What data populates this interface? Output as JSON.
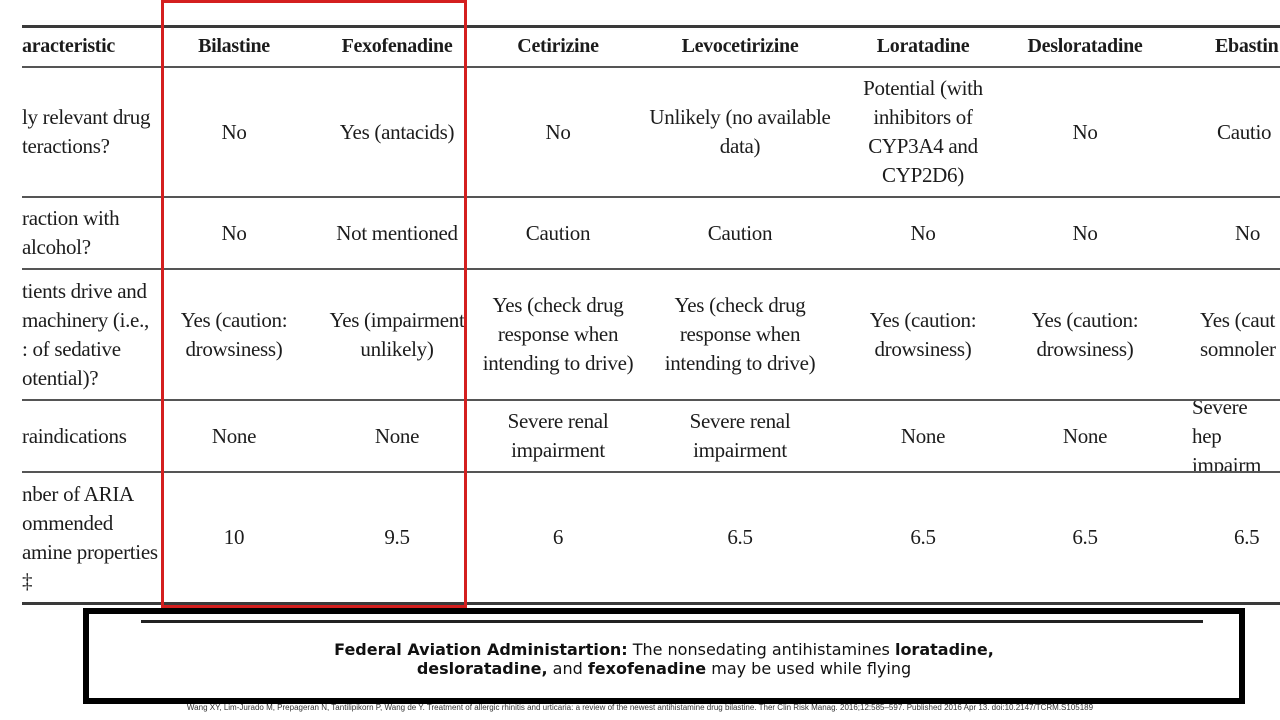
{
  "table": {
    "columns": [
      "aracteristic",
      "Bilastine",
      "Fexofenadine",
      "Cetirizine",
      "Levocetirizine",
      "Loratadine",
      "Desloratadine",
      "Ebastin"
    ],
    "rows": [
      {
        "label": "ly relevant drug\nteractions?",
        "values": [
          "No",
          "Yes (antacids)",
          "No",
          "Unlikely (no available\ndata)",
          "Potential (with\ninhibitors of\nCYP3A4 and\nCYP2D6)",
          "No",
          "Cautio"
        ]
      },
      {
        "label": "raction with\nalcohol?",
        "values": [
          "No",
          "Not mentioned",
          "Caution",
          "Caution",
          "No",
          "No",
          "No"
        ]
      },
      {
        "label": "tients drive and\nmachinery (i.e.,\n: of sedative\notential)?",
        "values": [
          "Yes (caution:\ndrowsiness)",
          "Yes (impairment\nunlikely)",
          "Yes (check drug\nresponse when\nintending to drive)",
          "Yes (check drug\nresponse when\nintending to drive)",
          "Yes (caution:\ndrowsiness)",
          "Yes (caution:\ndrowsiness)",
          "Yes (caut\nsomnoler"
        ]
      },
      {
        "label": "raindications",
        "values": [
          "None",
          "None",
          "Severe renal\nimpairment",
          "Severe renal impairment",
          "None",
          "None",
          "Severe hep\nimpairm"
        ]
      },
      {
        "label": "nber of ARIA\nommended\namine properties\n‡",
        "values": [
          "10",
          "9.5",
          "6",
          "6.5",
          "6.5",
          "6.5",
          "6.5"
        ]
      }
    ]
  },
  "note": {
    "lead": "Federal Aviation Administartion:",
    "part1": " The nonsedating antihistamines ",
    "drug1": "loratadine,",
    "drug2": "desloratadine,",
    "part2": " and ",
    "drug3": "fexofenadine",
    "part3": " may be used while flying"
  },
  "citation": "Wang XY, Lim-Jurado M, Prepageran N, Tantilipikorn P, Wang de Y. Treatment of allergic rhinitis and urticaria: a review of the newest antihistamine drug bilastine. Ther Clin Risk Manag. 2016;12:585–597. Published 2016 Apr 13. doi:10.2147/TCRM.S105189",
  "colors": {
    "highlight": "#d41f1f",
    "rule": "#3a3a3a"
  }
}
